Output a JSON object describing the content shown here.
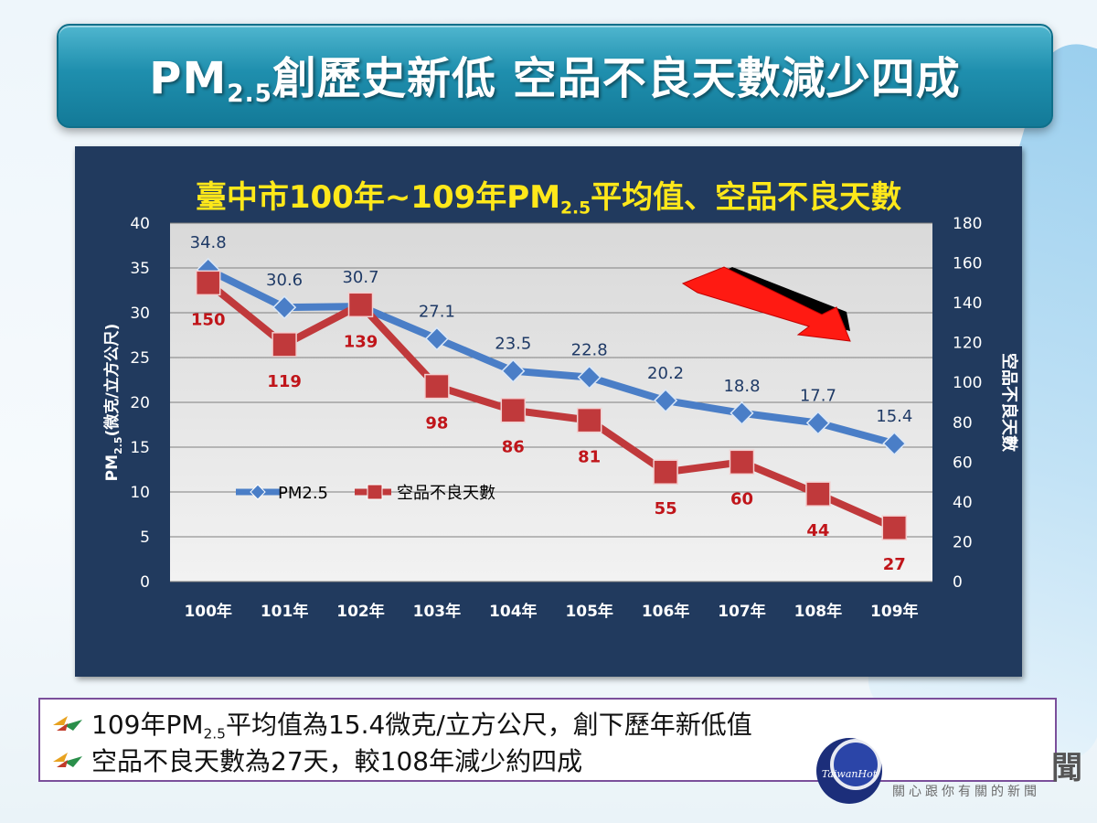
{
  "header": {
    "title_main": "PM",
    "title_sub": "2.5",
    "title_rest": "創歷史新低  空品不良天數減少四成"
  },
  "chart_data": {
    "type": "line",
    "title_main": "臺中市100年~109年PM",
    "title_sub": "2.5",
    "title_rest": "平均值、空品不良天數",
    "categories": [
      "100年",
      "101年",
      "102年",
      "103年",
      "104年",
      "105年",
      "106年",
      "107年",
      "108年",
      "109年"
    ],
    "series": [
      {
        "name": "PM2.5",
        "axis": "left",
        "color": "#4a7ec7",
        "values": [
          34.8,
          30.6,
          30.7,
          27.1,
          23.5,
          22.8,
          20.2,
          18.8,
          17.7,
          15.4
        ]
      },
      {
        "name": "空品不良天數",
        "axis": "right",
        "color": "#c0393b",
        "values": [
          150,
          119,
          139,
          98,
          86,
          81,
          55,
          60,
          44,
          27
        ]
      }
    ],
    "ylabel_left_main": "PM",
    "ylabel_left_sub": "2.5",
    "ylabel_left_rest": "(微克/立方公尺)",
    "ylabel_right": "空品不良天數",
    "ylim_left": [
      0,
      40
    ],
    "ylim_right": [
      0,
      180
    ],
    "yticks_left": [
      0,
      5,
      10,
      15,
      20,
      25,
      30,
      35,
      40
    ],
    "yticks_right": [
      0,
      20,
      40,
      60,
      80,
      100,
      120,
      140,
      160,
      180
    ],
    "grid": true,
    "legend_position": "lower-left",
    "annotation": "red downward arrow"
  },
  "notes": [
    {
      "pre": "109年PM",
      "sub": "2.5",
      "post": "平均值為15.4微克/立方公尺，創下歷年新低值"
    },
    {
      "pre": "空品不良天數為27天，較108年減少約四成",
      "sub": "",
      "post": ""
    }
  ],
  "watermark": {
    "logo_text": "TaiwanHot",
    "tagline": "關心跟你有關的新聞",
    "partial": "聞"
  }
}
